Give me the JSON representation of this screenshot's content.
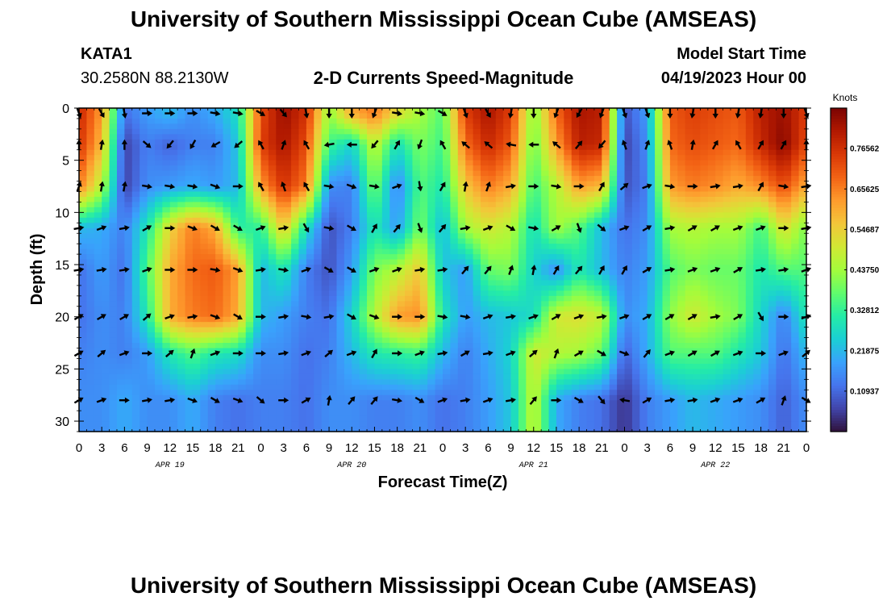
{
  "page": {
    "title": "University of Southern Mississippi Ocean Cube (AMSEAS)",
    "footer_title": "University of Southern Mississippi Ocean Cube (AMSEAS)"
  },
  "header": {
    "station": "KATA1",
    "location": "30.2580N  88.2130W",
    "plot_title": "2-D Currents Speed-Magnitude",
    "model_start_label": "Model Start Time",
    "model_start_value": "04/19/2023 Hour 00"
  },
  "colors": {
    "colormap": [
      "#30123b",
      "#4145ab",
      "#4675ed",
      "#39a2fc",
      "#1bcfd4",
      "#24eca6",
      "#61fc6c",
      "#a4fc3b",
      "#d1e834",
      "#f3c63a",
      "#fe9b2d",
      "#f36315",
      "#d93806",
      "#b11901",
      "#7a0402"
    ],
    "arrow": "#000000",
    "axis": "#000000"
  },
  "chart_data": {
    "type": "heatmap",
    "title": "2-D Currents Speed-Magnitude",
    "xlabel": "Forecast Time(Z)",
    "ylabel": "Depth (ft)",
    "x_unit": "hours since 04/19/2023 00Z",
    "xlim": [
      0,
      96
    ],
    "ylim": [
      0,
      31
    ],
    "y_inverted": true,
    "x_ticks": [
      0,
      3,
      6,
      9,
      12,
      15,
      18,
      21,
      24,
      27,
      30,
      33,
      36,
      39,
      42,
      45,
      48,
      51,
      54,
      57,
      60,
      63,
      66,
      69,
      72,
      75,
      78,
      81,
      84,
      87,
      90,
      93,
      96
    ],
    "x_tick_labels": [
      "0",
      "3",
      "6",
      "9",
      "12",
      "15",
      "18",
      "21",
      "0",
      "3",
      "6",
      "9",
      "12",
      "15",
      "18",
      "21",
      "0",
      "3",
      "6",
      "9",
      "12",
      "15",
      "18",
      "21",
      "0",
      "3",
      "6",
      "9",
      "12",
      "15",
      "18",
      "21",
      "0"
    ],
    "day_labels": [
      {
        "x": 12,
        "label": "APR 19"
      },
      {
        "x": 36,
        "label": "APR 20"
      },
      {
        "x": 60,
        "label": "APR 21"
      },
      {
        "x": 84,
        "label": "APR 22"
      }
    ],
    "y_ticks": [
      0,
      5,
      10,
      15,
      20,
      25,
      30
    ],
    "y_tick_labels": [
      "0",
      "5",
      "10",
      "15",
      "20",
      "25",
      "30"
    ],
    "colorbar": {
      "title": "Knots",
      "range": [
        0,
        0.875
      ],
      "ticks": [
        0.10937,
        0.21875,
        0.32812,
        0.4375,
        0.54687,
        0.65625,
        0.76562
      ],
      "tick_labels": [
        "0.10937",
        "0.21875",
        "0.32812",
        "0.43750",
        "0.54687",
        "0.65625",
        "0.76562"
      ]
    },
    "depths": [
      0.5,
      3.5,
      7.5,
      11.5,
      15.5,
      20,
      23.5,
      28
    ],
    "times": [
      0,
      3,
      6,
      9,
      12,
      15,
      18,
      21,
      24,
      27,
      30,
      33,
      36,
      39,
      42,
      45,
      48,
      51,
      54,
      57,
      60,
      63,
      66,
      69,
      72,
      75,
      78,
      81,
      84,
      87,
      90,
      93,
      96
    ],
    "speed": [
      [
        0.78,
        0.62,
        0.12,
        0.18,
        0.22,
        0.16,
        0.2,
        0.28,
        0.72,
        0.84,
        0.76,
        0.42,
        0.6,
        0.66,
        0.52,
        0.44,
        0.36,
        0.74,
        0.82,
        0.74,
        0.4,
        0.68,
        0.82,
        0.8,
        0.08,
        0.18,
        0.7,
        0.74,
        0.72,
        0.7,
        0.8,
        0.84,
        0.74
      ],
      [
        0.76,
        0.58,
        0.06,
        0.14,
        0.1,
        0.14,
        0.14,
        0.24,
        0.74,
        0.82,
        0.72,
        0.34,
        0.26,
        0.48,
        0.28,
        0.4,
        0.34,
        0.68,
        0.78,
        0.7,
        0.38,
        0.62,
        0.8,
        0.78,
        0.06,
        0.16,
        0.68,
        0.72,
        0.7,
        0.68,
        0.78,
        0.86,
        0.72
      ],
      [
        0.66,
        0.46,
        0.06,
        0.16,
        0.18,
        0.2,
        0.18,
        0.22,
        0.62,
        0.76,
        0.66,
        0.16,
        0.14,
        0.4,
        0.14,
        0.36,
        0.3,
        0.56,
        0.66,
        0.6,
        0.34,
        0.46,
        0.62,
        0.58,
        0.08,
        0.14,
        0.62,
        0.66,
        0.64,
        0.6,
        0.64,
        0.72,
        0.6
      ],
      [
        0.22,
        0.2,
        0.14,
        0.3,
        0.54,
        0.66,
        0.6,
        0.32,
        0.32,
        0.56,
        0.28,
        0.08,
        0.14,
        0.3,
        0.18,
        0.4,
        0.22,
        0.44,
        0.5,
        0.46,
        0.28,
        0.44,
        0.36,
        0.22,
        0.12,
        0.16,
        0.44,
        0.46,
        0.44,
        0.44,
        0.34,
        0.52,
        0.4
      ],
      [
        0.12,
        0.18,
        0.12,
        0.36,
        0.6,
        0.68,
        0.7,
        0.62,
        0.22,
        0.3,
        0.14,
        0.08,
        0.18,
        0.4,
        0.46,
        0.56,
        0.24,
        0.18,
        0.38,
        0.4,
        0.26,
        0.16,
        0.3,
        0.22,
        0.14,
        0.18,
        0.36,
        0.4,
        0.38,
        0.38,
        0.3,
        0.36,
        0.36
      ],
      [
        0.12,
        0.16,
        0.14,
        0.3,
        0.6,
        0.66,
        0.68,
        0.6,
        0.22,
        0.18,
        0.14,
        0.12,
        0.26,
        0.46,
        0.62,
        0.64,
        0.3,
        0.18,
        0.22,
        0.24,
        0.28,
        0.5,
        0.52,
        0.48,
        0.16,
        0.2,
        0.42,
        0.5,
        0.44,
        0.4,
        0.26,
        0.14,
        0.3
      ],
      [
        0.14,
        0.16,
        0.14,
        0.18,
        0.3,
        0.36,
        0.3,
        0.28,
        0.16,
        0.16,
        0.12,
        0.14,
        0.22,
        0.3,
        0.32,
        0.34,
        0.22,
        0.14,
        0.2,
        0.26,
        0.5,
        0.46,
        0.44,
        0.38,
        0.1,
        0.2,
        0.36,
        0.36,
        0.36,
        0.3,
        0.24,
        0.12,
        0.22
      ],
      [
        0.16,
        0.16,
        0.2,
        0.16,
        0.16,
        0.2,
        0.14,
        0.12,
        0.14,
        0.14,
        0.12,
        0.16,
        0.16,
        0.14,
        0.14,
        0.16,
        0.12,
        0.14,
        0.18,
        0.24,
        0.48,
        0.2,
        0.14,
        0.12,
        0.04,
        0.14,
        0.18,
        0.22,
        0.2,
        0.18,
        0.16,
        0.1,
        0.16
      ]
    ],
    "direction_deg": [
      [
        160,
        150,
        170,
        90,
        90,
        90,
        100,
        100,
        120,
        140,
        170,
        180,
        180,
        200,
        100,
        100,
        120,
        160,
        150,
        190,
        180,
        200,
        210,
        200,
        160,
        160,
        180,
        190,
        180,
        190,
        190,
        180,
        160
      ],
      [
        0,
        10,
        0,
        130,
        220,
        210,
        240,
        230,
        330,
        20,
        330,
        260,
        270,
        220,
        30,
        200,
        330,
        310,
        310,
        280,
        270,
        310,
        40,
        220,
        340,
        20,
        340,
        10,
        30,
        330,
        30,
        30,
        0
      ],
      [
        20,
        10,
        10,
        100,
        100,
        100,
        110,
        90,
        330,
        340,
        330,
        100,
        110,
        100,
        70,
        170,
        30,
        10,
        20,
        80,
        90,
        100,
        90,
        30,
        50,
        70,
        100,
        90,
        80,
        80,
        30,
        100,
        80
      ],
      [
        80,
        70,
        80,
        60,
        90,
        110,
        120,
        120,
        70,
        80,
        150,
        100,
        120,
        30,
        40,
        160,
        40,
        80,
        70,
        120,
        100,
        60,
        160,
        130,
        70,
        60,
        80,
        60,
        60,
        70,
        70,
        90,
        80
      ],
      [
        80,
        80,
        80,
        70,
        90,
        90,
        100,
        110,
        80,
        100,
        70,
        120,
        120,
        70,
        70,
        80,
        80,
        40,
        40,
        20,
        10,
        30,
        40,
        30,
        30,
        60,
        80,
        70,
        70,
        60,
        80,
        80,
        70
      ],
      [
        60,
        60,
        60,
        50,
        70,
        80,
        110,
        120,
        90,
        80,
        100,
        80,
        120,
        110,
        90,
        90,
        100,
        100,
        70,
        80,
        70,
        60,
        70,
        80,
        70,
        60,
        60,
        60,
        80,
        60,
        150,
        90,
        70
      ],
      [
        60,
        50,
        70,
        90,
        50,
        20,
        70,
        90,
        90,
        80,
        70,
        50,
        70,
        30,
        90,
        70,
        80,
        60,
        80,
        70,
        50,
        20,
        60,
        120,
        110,
        40,
        70,
        60,
        60,
        70,
        90,
        70,
        50
      ],
      [
        60,
        70,
        90,
        80,
        80,
        110,
        120,
        110,
        130,
        90,
        60,
        10,
        40,
        40,
        100,
        120,
        70,
        80,
        70,
        80,
        40,
        90,
        120,
        140,
        280,
        60,
        80,
        80,
        70,
        70,
        60,
        20,
        120
      ]
    ]
  }
}
